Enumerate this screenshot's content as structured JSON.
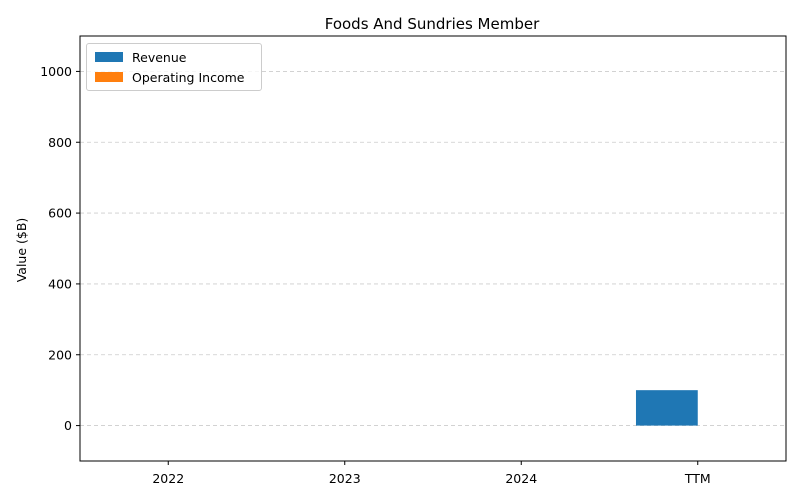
{
  "chart_data": {
    "type": "bar",
    "title": "Foods And Sundries Member",
    "xlabel": "",
    "ylabel": "Value ($B)",
    "categories": [
      "2022",
      "2023",
      "2024",
      "TTM"
    ],
    "series": [
      {
        "name": "Revenue",
        "color": "#1f77b4",
        "values": [
          0,
          0,
          0,
          100
        ]
      },
      {
        "name": "Operating Income",
        "color": "#ff7f0e",
        "values": [
          0,
          0,
          0,
          0
        ]
      }
    ],
    "ylim": [
      -100,
      1100
    ],
    "yticks": [
      0,
      200,
      400,
      600,
      800,
      1000
    ],
    "grid": true,
    "legend_position": "top-left"
  }
}
